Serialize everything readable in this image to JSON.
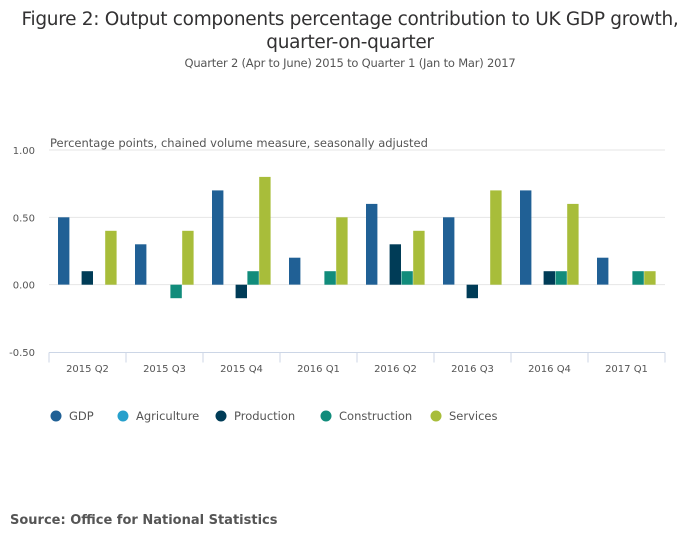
{
  "chart_data": {
    "type": "bar",
    "title": "Figure 2: Output components percentage contribution to UK GDP growth, quarter-on-quarter",
    "title_lines": [
      "Figure 2: Output components percentage contribution to UK GDP growth,",
      "quarter-on-quarter"
    ],
    "subtitle": "Quarter 2 (Apr to June) 2015 to Quarter 1 (Jan to Mar) 2017",
    "ylabel": "Percentage points, chained volume measure, seasonally adjusted",
    "xlabel": "",
    "ylim": [
      -0.5,
      1.0
    ],
    "yticks": [
      1.0,
      0.5,
      0.0,
      -0.5
    ],
    "ytick_labels": [
      "1.00",
      "0.50",
      "0.00",
      "-0.50"
    ],
    "grid": true,
    "legend_position": "bottom-left",
    "categories": [
      "2015 Q2",
      "2015 Q3",
      "2015 Q4",
      "2016 Q1",
      "2016 Q2",
      "2016 Q3",
      "2016 Q4",
      "2017 Q1"
    ],
    "series": [
      {
        "name": "GDP",
        "color": "#206095",
        "values": [
          0.5,
          0.3,
          0.7,
          0.2,
          0.6,
          0.5,
          0.7,
          0.2
        ]
      },
      {
        "name": "Agriculture",
        "color": "#27a0cc",
        "values": [
          0.0,
          0.0,
          0.0,
          0.0,
          0.0,
          0.0,
          0.0,
          0.0
        ]
      },
      {
        "name": "Production",
        "color": "#003c57",
        "values": [
          0.1,
          0.0,
          -0.1,
          0.0,
          0.3,
          -0.1,
          0.1,
          0.0
        ]
      },
      {
        "name": "Construction",
        "color": "#118c7b",
        "values": [
          0.0,
          -0.1,
          0.1,
          0.1,
          0.1,
          0.0,
          0.1,
          0.1
        ]
      },
      {
        "name": "Services",
        "color": "#a8bd3a",
        "values": [
          0.4,
          0.4,
          0.8,
          0.5,
          0.4,
          0.7,
          0.6,
          0.1
        ]
      }
    ]
  },
  "source": "Source: Office for National Statistics"
}
